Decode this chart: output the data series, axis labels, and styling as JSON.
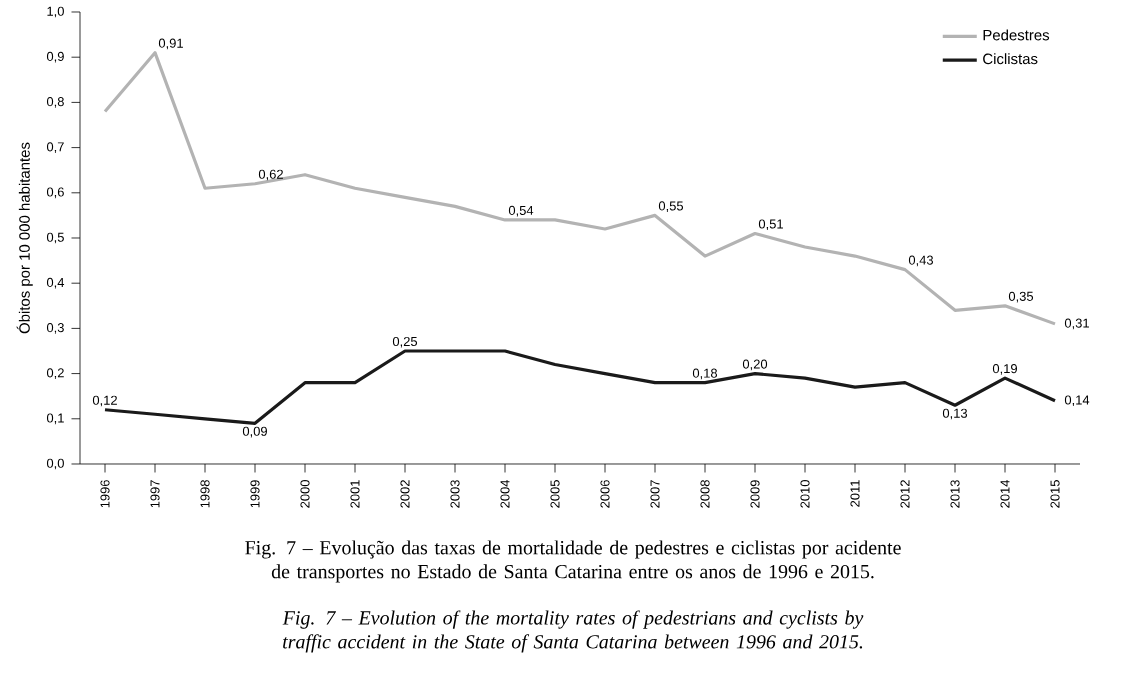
{
  "chart_data": {
    "type": "line",
    "ylabel": "Óbitos por 10 000 habitantes",
    "categories": [
      "1996",
      "1997",
      "1998",
      "1999",
      "2000",
      "2001",
      "2002",
      "2003",
      "2004",
      "2005",
      "2006",
      "2007",
      "2008",
      "2009",
      "2010",
      "2011",
      "2012",
      "2013",
      "2014",
      "2015"
    ],
    "series": [
      {
        "name": "Pedestres",
        "color": "#b3b3b3",
        "values": [
          0.78,
          0.91,
          0.61,
          0.62,
          0.64,
          0.61,
          0.59,
          0.57,
          0.54,
          0.54,
          0.52,
          0.55,
          0.46,
          0.51,
          0.48,
          0.46,
          0.43,
          0.34,
          0.35,
          0.31
        ],
        "value_labels": [
          null,
          "0,91",
          null,
          "0,62",
          null,
          null,
          null,
          null,
          "0,54",
          null,
          null,
          "0,55",
          null,
          "0,51",
          null,
          null,
          "0,43",
          null,
          "0,35",
          "0,31"
        ]
      },
      {
        "name": "Ciclistas",
        "color": "#1a1a1a",
        "values": [
          0.12,
          0.11,
          0.1,
          0.09,
          0.18,
          0.18,
          0.25,
          0.25,
          0.25,
          0.22,
          0.2,
          0.18,
          0.18,
          0.2,
          0.19,
          0.17,
          0.18,
          0.13,
          0.19,
          0.14
        ],
        "value_labels": [
          "0,12",
          null,
          null,
          "0,09",
          null,
          null,
          "0,25",
          null,
          null,
          null,
          null,
          null,
          "0,18",
          "0,20",
          null,
          null,
          null,
          "0,13",
          "0,19",
          "0,14"
        ]
      }
    ],
    "ylim": [
      0,
      1
    ],
    "yticks": [
      {
        "value": 0,
        "label": "0,0"
      },
      {
        "value": 0.1,
        "label": "0,1"
      },
      {
        "value": 0.2,
        "label": "0,2"
      },
      {
        "value": 0.3,
        "label": "0,3"
      },
      {
        "value": 0.4,
        "label": "0,4"
      },
      {
        "value": 0.5,
        "label": "0,5"
      },
      {
        "value": 0.6,
        "label": "0,6"
      },
      {
        "value": 0.7,
        "label": "0,7"
      },
      {
        "value": 0.8,
        "label": "0,8"
      },
      {
        "value": 0.9,
        "label": "0,9"
      },
      {
        "value": 1,
        "label": "1,0"
      }
    ],
    "grid": false,
    "legend": "top right",
    "marker": "none",
    "line_style": "solid",
    "annotations": [
      "Fig. 7 – Evolução das taxas de mortalidade de pedestres e ciclistas por acidente de transportes no Estado de Santa Catarina entre os anos de 1996 e 2015.",
      "Fig. 7 – Evolution of the mortality rates of pedestrians and cyclists by traffic accident in the State of Santa Catarina between 1996 and 2015."
    ]
  }
}
